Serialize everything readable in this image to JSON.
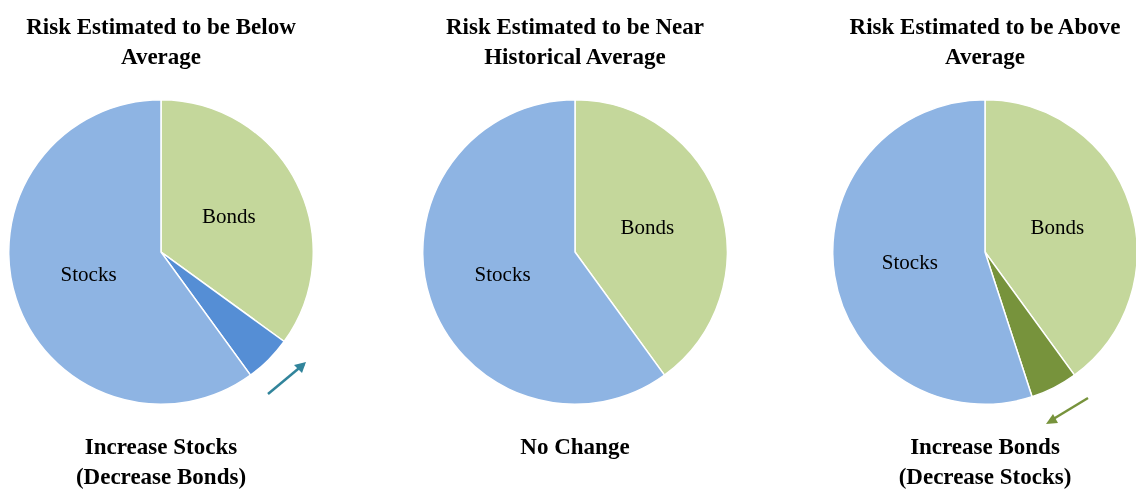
{
  "chart_data": [
    {
      "type": "pie",
      "title": "Risk Estimated to be Below Average",
      "categories": [
        "Bonds",
        null,
        "Stocks"
      ],
      "values": [
        35,
        5,
        60
      ],
      "colors": [
        "#c4d79b",
        "#558ed5",
        "#8eb4e3"
      ],
      "legend": false,
      "annotations": [
        "Increase Stocks (Decrease Bonds)"
      ]
    },
    {
      "type": "pie",
      "title": "Risk Estimated to be Near Historical Average",
      "categories": [
        "Bonds",
        "Stocks"
      ],
      "values": [
        40,
        60
      ],
      "colors": [
        "#c4d79b",
        "#8eb4e3"
      ],
      "legend": false,
      "annotations": [
        "No Change"
      ]
    },
    {
      "type": "pie",
      "title": "Risk Estimated to be Above Average",
      "categories": [
        "Bonds",
        null,
        "Stocks"
      ],
      "values": [
        40,
        5,
        55
      ],
      "colors": [
        "#c4d79b",
        "#77933c",
        "#8eb4e3"
      ],
      "legend": false,
      "annotations": [
        "Increase Bonds (Decrease Stocks)"
      ]
    }
  ]
}
